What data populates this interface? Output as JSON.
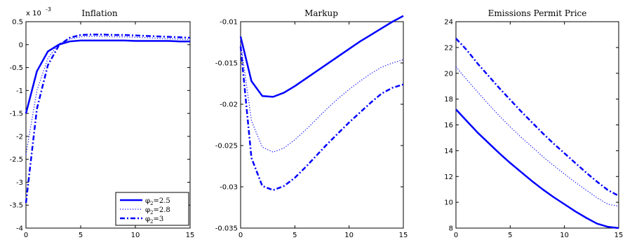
{
  "chart_data": [
    {
      "type": "line",
      "title": "Inflation",
      "exponent_label": "x 10",
      "exponent_power": "-3",
      "xlim": [
        0,
        15
      ],
      "ylim": [
        -4,
        0.5
      ],
      "xticks": [
        "0",
        "5",
        "10",
        "15"
      ],
      "yticks": [
        "-4",
        "-3.5",
        "-3",
        "-2.5",
        "-2",
        "-1.5",
        "-1",
        "-0.5",
        "0",
        "0.5"
      ],
      "legend_position": "bottom-right",
      "x": [
        0,
        1,
        2,
        3,
        4,
        5,
        6,
        7,
        8,
        9,
        10,
        11,
        12,
        13,
        14,
        15
      ],
      "series": [
        {
          "name": "=2.5",
          "symbol": "φ",
          "subscript": "2",
          "style": "solid",
          "values": [
            -1.5,
            -0.58,
            -0.15,
            0.0,
            0.07,
            0.09,
            0.09,
            0.09,
            0.09,
            0.09,
            0.08,
            0.08,
            0.08,
            0.08,
            0.07,
            0.07
          ]
        },
        {
          "name": "=2.8",
          "symbol": "φ",
          "subscript": "2",
          "style": "dotted",
          "values": [
            -2.4,
            -1.0,
            -0.3,
            0.02,
            0.12,
            0.17,
            0.18,
            0.18,
            0.17,
            0.17,
            0.16,
            0.15,
            0.14,
            0.13,
            0.12,
            0.11
          ]
        },
        {
          "name": "=3",
          "symbol": "φ",
          "subscript": "2",
          "style": "dashdot",
          "values": [
            -3.45,
            -1.4,
            -0.45,
            -0.02,
            0.15,
            0.21,
            0.22,
            0.22,
            0.21,
            0.21,
            0.2,
            0.19,
            0.18,
            0.17,
            0.16,
            0.15
          ]
        }
      ]
    },
    {
      "type": "line",
      "title": "Markup",
      "xlim": [
        0,
        15
      ],
      "ylim": [
        -0.035,
        -0.01
      ],
      "xticks": [
        "0",
        "5",
        "10",
        "15"
      ],
      "yticks": [
        "-0.035",
        "-0.03",
        "-0.025",
        "-0.02",
        "-0.015",
        "-0.01"
      ],
      "x": [
        0,
        1,
        2,
        3,
        4,
        5,
        6,
        7,
        8,
        9,
        10,
        11,
        12,
        13,
        14,
        15
      ],
      "series": [
        {
          "style": "solid",
          "values": [
            -0.0118,
            -0.0172,
            -0.019,
            -0.0191,
            -0.0186,
            -0.0178,
            -0.0169,
            -0.016,
            -0.0151,
            -0.0142,
            -0.0133,
            -0.0124,
            -0.0116,
            -0.0108,
            -0.01,
            -0.0093
          ]
        },
        {
          "style": "dotted",
          "values": [
            -0.0125,
            -0.022,
            -0.0252,
            -0.0258,
            -0.0253,
            -0.0243,
            -0.0231,
            -0.0218,
            -0.0205,
            -0.0193,
            -0.0182,
            -0.0172,
            -0.0163,
            -0.0155,
            -0.015,
            -0.0146
          ]
        },
        {
          "style": "dashdot",
          "values": [
            -0.013,
            -0.0265,
            -0.0299,
            -0.0304,
            -0.0299,
            -0.0289,
            -0.0276,
            -0.0262,
            -0.0248,
            -0.0235,
            -0.0222,
            -0.021,
            -0.0198,
            -0.0187,
            -0.018,
            -0.0176
          ]
        }
      ]
    },
    {
      "type": "line",
      "title": "Emissions Permit Price",
      "xlim": [
        0,
        15
      ],
      "ylim": [
        8,
        24
      ],
      "xticks": [
        "0",
        "5",
        "10",
        "15"
      ],
      "yticks": [
        "8",
        "10",
        "12",
        "14",
        "16",
        "18",
        "20",
        "22",
        "24"
      ],
      "x": [
        0,
        1,
        2,
        3,
        4,
        5,
        6,
        7,
        8,
        9,
        10,
        11,
        12,
        13,
        14,
        15
      ],
      "series": [
        {
          "style": "solid",
          "values": [
            17.2,
            16.3,
            15.4,
            14.6,
            13.8,
            13.05,
            12.35,
            11.65,
            11.0,
            10.4,
            9.85,
            9.3,
            8.8,
            8.35,
            8.1,
            8.0
          ]
        },
        {
          "style": "dotted",
          "values": [
            20.5,
            19.5,
            18.55,
            17.6,
            16.7,
            15.85,
            15.05,
            14.3,
            13.55,
            12.85,
            12.2,
            11.55,
            10.95,
            10.35,
            9.85,
            9.7
          ]
        },
        {
          "style": "dashdot",
          "values": [
            22.7,
            21.8,
            20.75,
            19.8,
            18.85,
            17.95,
            17.05,
            16.2,
            15.35,
            14.55,
            13.8,
            13.05,
            12.3,
            11.6,
            10.95,
            10.5
          ]
        }
      ]
    }
  ],
  "colors": {
    "series": "#0000ff",
    "axes": "#000000"
  }
}
